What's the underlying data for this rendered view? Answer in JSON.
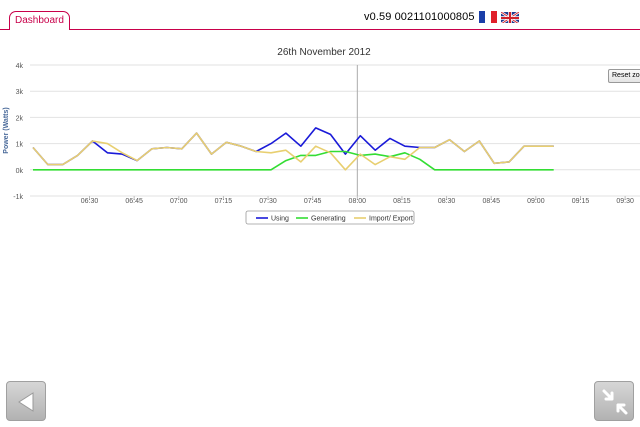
{
  "header": {
    "tab_label": "Dashboard",
    "version_text": "v0.59  0021101000805",
    "languages": [
      "fr",
      "en"
    ]
  },
  "chart": {
    "reset_label": "Reset zoom"
  },
  "chart_data": {
    "type": "line",
    "title": "26th November 2012",
    "ylabel": "Power (Watts)",
    "xlabel": "",
    "ylim": [
      -1000,
      4000
    ],
    "yticks": [
      {
        "v": -1000,
        "label": "-1k"
      },
      {
        "v": 0,
        "label": "0k"
      },
      {
        "v": 1000,
        "label": "1k"
      },
      {
        "v": 2000,
        "label": "2k"
      },
      {
        "v": 3000,
        "label": "3k"
      },
      {
        "v": 4000,
        "label": "4k"
      }
    ],
    "xlim": [
      "06:10",
      "09:35"
    ],
    "xticks": [
      "06:30",
      "06:45",
      "07:00",
      "07:15",
      "07:30",
      "07:45",
      "08:00",
      "08:15",
      "08:30",
      "08:45",
      "09:00",
      "09:15",
      "09:30"
    ],
    "crosshair_x": "08:00",
    "x": [
      "06:11",
      "06:16",
      "06:21",
      "06:26",
      "06:31",
      "06:36",
      "06:41",
      "06:46",
      "06:51",
      "06:56",
      "07:01",
      "07:06",
      "07:11",
      "07:16",
      "07:21",
      "07:26",
      "07:31",
      "07:36",
      "07:41",
      "07:46",
      "07:51",
      "07:56",
      "08:01",
      "08:06",
      "08:11",
      "08:16",
      "08:21",
      "08:26",
      "08:31",
      "08:36",
      "08:41",
      "08:46",
      "08:51",
      "08:56",
      "09:01",
      "09:06"
    ],
    "series": [
      {
        "name": "Using",
        "color": "#1a1ad8",
        "values": [
          850,
          200,
          200,
          550,
          1100,
          650,
          600,
          350,
          800,
          850,
          800,
          1400,
          600,
          1050,
          900,
          700,
          1000,
          1400,
          900,
          1600,
          1350,
          600,
          1300,
          750,
          1200,
          900,
          850,
          850,
          1150,
          700,
          1100,
          250,
          300,
          900,
          900,
          900
        ]
      },
      {
        "name": "Generating",
        "color": "#33dd33",
        "values": [
          0,
          0,
          0,
          0,
          0,
          0,
          0,
          0,
          0,
          0,
          0,
          0,
          0,
          0,
          0,
          0,
          0,
          350,
          550,
          550,
          700,
          700,
          550,
          600,
          500,
          650,
          400,
          0,
          0,
          0,
          0,
          0,
          0,
          0,
          0,
          0
        ]
      },
      {
        "name": "Import/ Export",
        "color": "#e8cf70",
        "values": [
          850,
          200,
          200,
          550,
          1100,
          1000,
          650,
          350,
          800,
          850,
          800,
          1400,
          600,
          1050,
          900,
          700,
          650,
          750,
          300,
          900,
          650,
          0,
          600,
          200,
          500,
          400,
          850,
          850,
          1150,
          700,
          1100,
          250,
          300,
          900,
          900,
          900
        ]
      }
    ],
    "legend_position": "bottom",
    "grid": true
  }
}
